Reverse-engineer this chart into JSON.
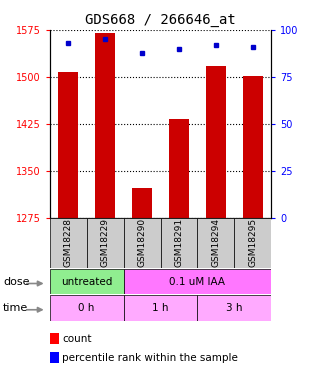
{
  "title": "GDS668 / 266646_at",
  "samples": [
    "GSM18228",
    "GSM18229",
    "GSM18290",
    "GSM18291",
    "GSM18294",
    "GSM18295"
  ],
  "bar_values": [
    1508,
    1570,
    1322,
    1432,
    1518,
    1502
  ],
  "percentile_values": [
    93,
    95,
    88,
    90,
    92,
    91
  ],
  "ylim_left": [
    1275,
    1575
  ],
  "ylim_right": [
    0,
    100
  ],
  "yticks_left": [
    1275,
    1350,
    1425,
    1500,
    1575
  ],
  "yticks_right": [
    0,
    25,
    50,
    75,
    100
  ],
  "bar_color": "#cc0000",
  "dot_color": "#0000cc",
  "bar_width": 0.55,
  "dose_groups": [
    {
      "label": "untreated",
      "start": 0,
      "end": 2,
      "color": "#90ee90"
    },
    {
      "label": "0.1 uM IAA",
      "start": 2,
      "end": 6,
      "color": "#ff77ff"
    }
  ],
  "time_groups": [
    {
      "label": "0 h",
      "start": 0,
      "end": 2,
      "color": "#ffaaff"
    },
    {
      "label": "1 h",
      "start": 2,
      "end": 4,
      "color": "#ffaaff"
    },
    {
      "label": "3 h",
      "start": 4,
      "end": 6,
      "color": "#ffaaff"
    }
  ],
  "legend_red_label": "count",
  "legend_blue_label": "percentile rank within the sample",
  "dose_label": "dose",
  "time_label": "time",
  "title_fontsize": 10,
  "tick_fontsize": 7,
  "sample_fontsize": 6.5,
  "row_label_fontsize": 8,
  "cell_fontsize": 7.5
}
